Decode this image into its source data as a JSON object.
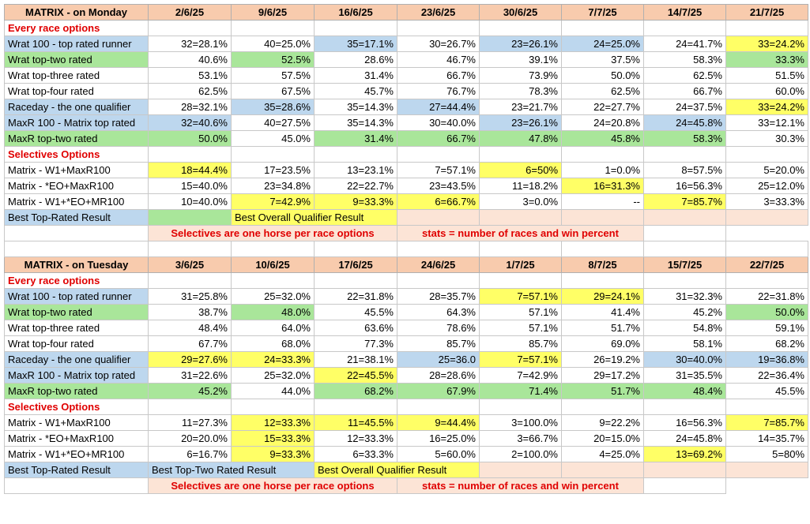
{
  "colors": {
    "header_bg": "#f8cbad",
    "blue": "#bdd7ee",
    "green": "#a9e69a",
    "yellow": "#ffff66",
    "peach": "#fce4d6",
    "section_red": "#e00000"
  },
  "monday": {
    "title": "MATRIX - on Monday",
    "dates": [
      "2/6/25",
      "9/6/25",
      "16/6/25",
      "23/6/25",
      "30/6/25",
      "7/7/25",
      "14/7/25",
      "21/7/25"
    ],
    "every_race_heading": "Every race options",
    "every_race_rows": [
      {
        "label": "Wrat 100 - top rated runner",
        "label_color": "blue",
        "cells": [
          {
            "v": "32=28.1%"
          },
          {
            "v": "40=25.0%"
          },
          {
            "v": "35=17.1%",
            "c": "blue"
          },
          {
            "v": "30=26.7%"
          },
          {
            "v": "23=26.1%",
            "c": "blue"
          },
          {
            "v": "24=25.0%",
            "c": "blue"
          },
          {
            "v": "24=41.7%"
          },
          {
            "v": "33=24.2%",
            "c": "yellow"
          }
        ]
      },
      {
        "label": "Wrat top-two rated",
        "label_color": "green",
        "cells": [
          {
            "v": "40.6%"
          },
          {
            "v": "52.5%",
            "c": "green"
          },
          {
            "v": "28.6%"
          },
          {
            "v": "46.7%"
          },
          {
            "v": "39.1%"
          },
          {
            "v": "37.5%"
          },
          {
            "v": "58.3%"
          },
          {
            "v": "33.3%",
            "c": "green"
          }
        ]
      },
      {
        "label": "Wrat top-three rated",
        "label_color": "",
        "cells": [
          {
            "v": "53.1%"
          },
          {
            "v": "57.5%"
          },
          {
            "v": "31.4%"
          },
          {
            "v": "66.7%"
          },
          {
            "v": "73.9%"
          },
          {
            "v": "50.0%"
          },
          {
            "v": "62.5%"
          },
          {
            "v": "51.5%"
          }
        ]
      },
      {
        "label": "Wrat top-four rated",
        "label_color": "",
        "cells": [
          {
            "v": "62.5%"
          },
          {
            "v": "67.5%"
          },
          {
            "v": "45.7%"
          },
          {
            "v": "76.7%"
          },
          {
            "v": "78.3%"
          },
          {
            "v": "62.5%"
          },
          {
            "v": "66.7%"
          },
          {
            "v": "60.0%"
          }
        ]
      },
      {
        "label": "Raceday - the one qualifier",
        "label_color": "blue",
        "cells": [
          {
            "v": "28=32.1%"
          },
          {
            "v": "35=28.6%",
            "c": "blue"
          },
          {
            "v": "35=14.3%"
          },
          {
            "v": "27=44.4%",
            "c": "blue"
          },
          {
            "v": "23=21.7%"
          },
          {
            "v": "22=27.7%"
          },
          {
            "v": "24=37.5%"
          },
          {
            "v": "33=24.2%",
            "c": "yellow"
          }
        ]
      },
      {
        "label": "MaxR 100 - Matrix top rated",
        "label_color": "blue",
        "cells": [
          {
            "v": "32=40.6%",
            "c": "blue"
          },
          {
            "v": "40=27.5%"
          },
          {
            "v": "35=14.3%"
          },
          {
            "v": "30=40.0%"
          },
          {
            "v": "23=26.1%",
            "c": "blue"
          },
          {
            "v": "24=20.8%"
          },
          {
            "v": "24=45.8%",
            "c": "blue"
          },
          {
            "v": "33=12.1%"
          }
        ]
      },
      {
        "label": "MaxR top-two rated",
        "label_color": "green",
        "cells": [
          {
            "v": "50.0%",
            "c": "green"
          },
          {
            "v": "45.0%"
          },
          {
            "v": "31.4%",
            "c": "green"
          },
          {
            "v": "66.7%",
            "c": "green"
          },
          {
            "v": "47.8%",
            "c": "green"
          },
          {
            "v": "45.8%",
            "c": "green"
          },
          {
            "v": "58.3%",
            "c": "green"
          },
          {
            "v": "30.3%"
          }
        ]
      }
    ],
    "selectives_heading": "Selectives Options",
    "selective_rows": [
      {
        "label": "Matrix - W1+MaxR100",
        "cells": [
          {
            "v": "18=44.4%",
            "c": "yellow"
          },
          {
            "v": "17=23.5%"
          },
          {
            "v": "13=23.1%"
          },
          {
            "v": "7=57.1%"
          },
          {
            "v": "6=50%",
            "c": "yellow"
          },
          {
            "v": "1=0.0%"
          },
          {
            "v": "8=57.5%"
          },
          {
            "v": "5=20.0%"
          }
        ]
      },
      {
        "label": "Matrix - *EO+MaxR100",
        "cells": [
          {
            "v": "15=40.0%"
          },
          {
            "v": "23=34.8%"
          },
          {
            "v": "22=22.7%"
          },
          {
            "v": "23=43.5%"
          },
          {
            "v": "11=18.2%"
          },
          {
            "v": "16=31.3%",
            "c": "yellow"
          },
          {
            "v": "16=56.3%"
          },
          {
            "v": "25=12.0%"
          }
        ]
      },
      {
        "label": "Matrix - W1+*EO+MR100",
        "cells": [
          {
            "v": "10=40.0%"
          },
          {
            "v": "7=42.9%",
            "c": "yellow"
          },
          {
            "v": "9=33.3%",
            "c": "yellow"
          },
          {
            "v": "6=66.7%",
            "c": "yellow"
          },
          {
            "v": "3=0.0%"
          },
          {
            "v": "--"
          },
          {
            "v": "7=85.7%",
            "c": "yellow"
          },
          {
            "v": "3=33.3%"
          }
        ]
      }
    ],
    "legend": {
      "best_top_rated": "Best Top-Rated Result",
      "best_overall": "Best Overall Qualifier Result"
    },
    "note_left": "Selectives are one horse per race options",
    "note_right": "stats = number of races and win percent"
  },
  "tuesday": {
    "title": "MATRIX - on Tuesday",
    "dates": [
      "3/6/25",
      "10/6/25",
      "17/6/25",
      "24/6/25",
      "1/7/25",
      "8/7/25",
      "15/7/25",
      "22/7/25"
    ],
    "every_race_heading": "Every race options",
    "every_race_rows": [
      {
        "label": "Wrat 100 - top rated runner",
        "label_color": "blue",
        "cells": [
          {
            "v": "31=25.8%"
          },
          {
            "v": "25=32.0%"
          },
          {
            "v": "22=31.8%"
          },
          {
            "v": "28=35.7%"
          },
          {
            "v": "7=57.1%",
            "c": "yellow"
          },
          {
            "v": "29=24.1%",
            "c": "yellow"
          },
          {
            "v": "31=32.3%"
          },
          {
            "v": "22=31.8%"
          }
        ]
      },
      {
        "label": "Wrat top-two rated",
        "label_color": "green",
        "cells": [
          {
            "v": "38.7%"
          },
          {
            "v": "48.0%",
            "c": "green"
          },
          {
            "v": "45.5%"
          },
          {
            "v": "64.3%"
          },
          {
            "v": "57.1%"
          },
          {
            "v": "41.4%"
          },
          {
            "v": "45.2%"
          },
          {
            "v": "50.0%",
            "c": "green"
          }
        ]
      },
      {
        "label": "Wrat top-three rated",
        "label_color": "",
        "cells": [
          {
            "v": "48.4%"
          },
          {
            "v": "64.0%"
          },
          {
            "v": "63.6%"
          },
          {
            "v": "78.6%"
          },
          {
            "v": "57.1%"
          },
          {
            "v": "51.7%"
          },
          {
            "v": "54.8%"
          },
          {
            "v": "59.1%"
          }
        ]
      },
      {
        "label": "Wrat top-four rated",
        "label_color": "",
        "cells": [
          {
            "v": "67.7%"
          },
          {
            "v": "68.0%"
          },
          {
            "v": "77.3%"
          },
          {
            "v": "85.7%"
          },
          {
            "v": "85.7%"
          },
          {
            "v": "69.0%"
          },
          {
            "v": "58.1%"
          },
          {
            "v": "68.2%"
          }
        ]
      },
      {
        "label": "Raceday - the one qualifier",
        "label_color": "blue",
        "cells": [
          {
            "v": "29=27.6%",
            "c": "yellow"
          },
          {
            "v": "24=33.3%",
            "c": "yellow"
          },
          {
            "v": "21=38.1%"
          },
          {
            "v": "25=36.0",
            "c": "blue"
          },
          {
            "v": "7=57.1%",
            "c": "yellow"
          },
          {
            "v": "26=19.2%"
          },
          {
            "v": "30=40.0%",
            "c": "blue"
          },
          {
            "v": "19=36.8%",
            "c": "blue"
          }
        ]
      },
      {
        "label": "MaxR 100 - Matrix top rated",
        "label_color": "blue",
        "cells": [
          {
            "v": "31=22.6%"
          },
          {
            "v": "25=32.0%"
          },
          {
            "v": "22=45.5%",
            "c": "yellow"
          },
          {
            "v": "28=28.6%"
          },
          {
            "v": "7=42.9%"
          },
          {
            "v": "29=17.2%"
          },
          {
            "v": "31=35.5%"
          },
          {
            "v": "22=36.4%"
          }
        ]
      },
      {
        "label": "MaxR top-two rated",
        "label_color": "green",
        "cells": [
          {
            "v": "45.2%",
            "c": "green"
          },
          {
            "v": "44.0%"
          },
          {
            "v": "68.2%",
            "c": "green"
          },
          {
            "v": "67.9%",
            "c": "green"
          },
          {
            "v": "71.4%",
            "c": "green"
          },
          {
            "v": "51.7%",
            "c": "green"
          },
          {
            "v": "48.4%",
            "c": "green"
          },
          {
            "v": "45.5%"
          }
        ]
      }
    ],
    "selectives_heading": "Selectives Options",
    "selective_rows": [
      {
        "label": "Matrix - W1+MaxR100",
        "cells": [
          {
            "v": "11=27.3%"
          },
          {
            "v": "12=33.3%",
            "c": "yellow"
          },
          {
            "v": "11=45.5%",
            "c": "yellow"
          },
          {
            "v": "9=44.4%",
            "c": "yellow"
          },
          {
            "v": "3=100.0%"
          },
          {
            "v": "9=22.2%"
          },
          {
            "v": "16=56.3%"
          },
          {
            "v": "7=85.7%",
            "c": "yellow"
          }
        ]
      },
      {
        "label": "Matrix - *EO+MaxR100",
        "cells": [
          {
            "v": "20=20.0%"
          },
          {
            "v": "15=33.3%",
            "c": "yellow"
          },
          {
            "v": "12=33.3%"
          },
          {
            "v": "16=25.0%"
          },
          {
            "v": "3=66.7%"
          },
          {
            "v": "20=15.0%"
          },
          {
            "v": "24=45.8%"
          },
          {
            "v": "14=35.7%"
          }
        ]
      },
      {
        "label": "Matrix - W1+*EO+MR100",
        "cells": [
          {
            "v": "6=16.7%"
          },
          {
            "v": "9=33.3%",
            "c": "yellow"
          },
          {
            "v": "6=33.3%"
          },
          {
            "v": "5=60.0%"
          },
          {
            "v": "2=100.0%"
          },
          {
            "v": "4=25.0%"
          },
          {
            "v": "13=69.2%",
            "c": "yellow"
          },
          {
            "v": "5=80%"
          }
        ]
      }
    ],
    "legend": {
      "best_top_rated": "Best Top-Rated Result",
      "best_top_two": "Best Top-Two Rated Result",
      "best_overall": "Best Overall Qualifier Result"
    },
    "note_left": "Selectives are one horse per race options",
    "note_right": "stats = number of races and win percent"
  }
}
